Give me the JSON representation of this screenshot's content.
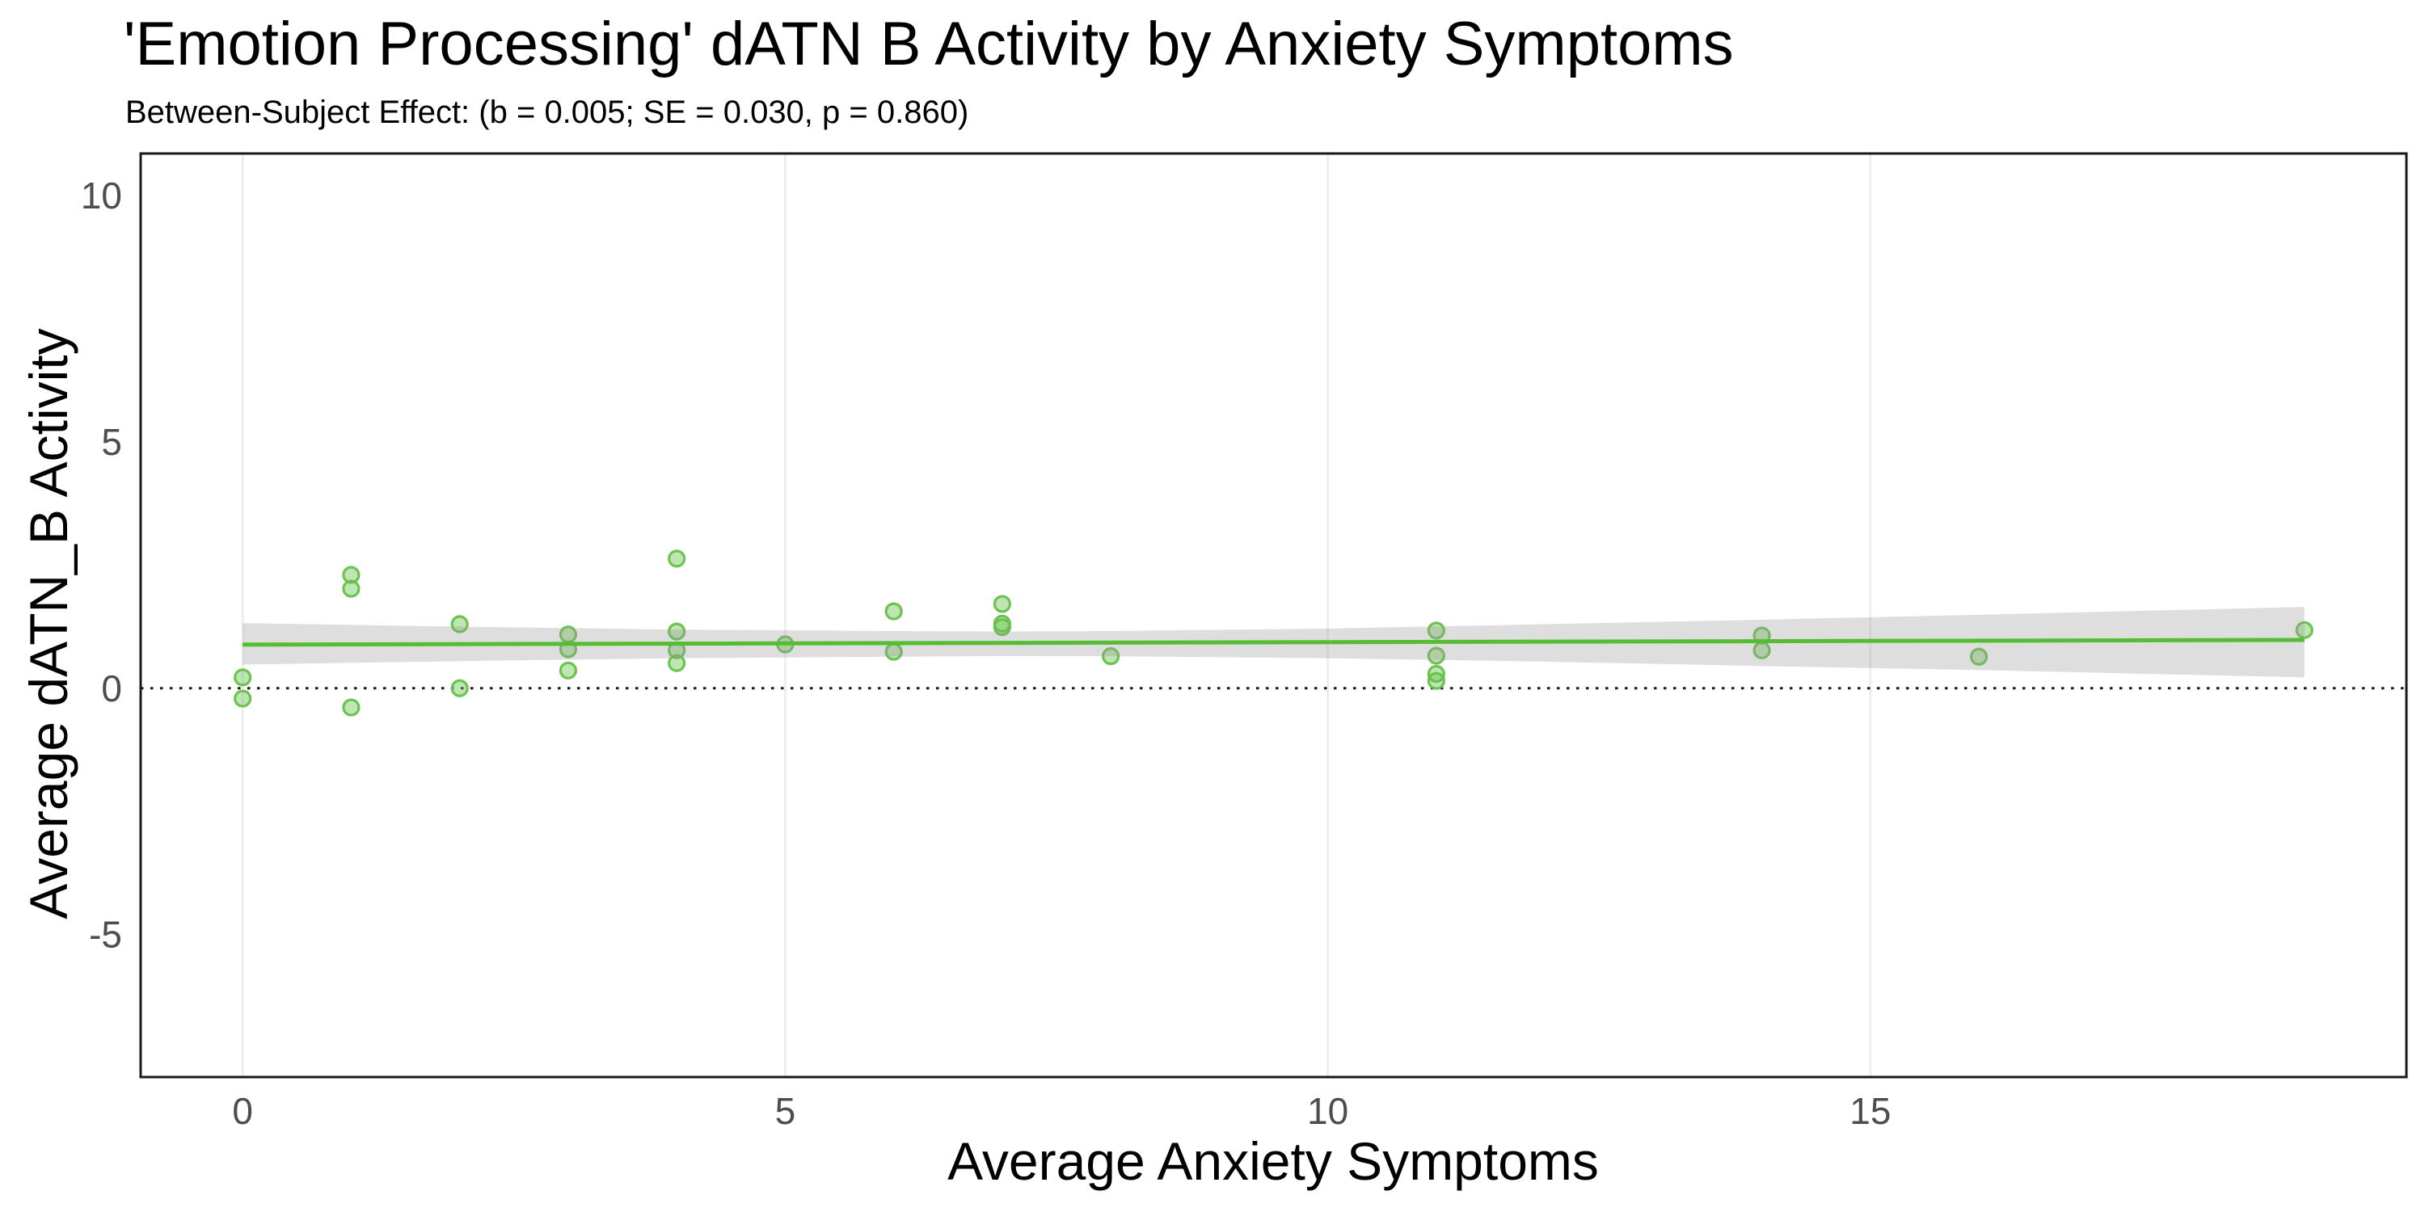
{
  "chart_data": {
    "type": "scatter",
    "title": "'Emotion Processing' dATN B Activity by Anxiety Symptoms",
    "subtitle": "Between-Subject Effect: (b = 0.005; SE = 0.030, p = 0.860)",
    "xlabel": "Average Anxiety Symptoms",
    "ylabel": "Average dATN_B Activity",
    "xlim": [
      -0.94,
      19.94
    ],
    "ylim": [
      -7.89,
      10.85
    ],
    "x_ticks": [
      0,
      5,
      10,
      15
    ],
    "y_ticks": [
      -5,
      0,
      5,
      10
    ],
    "grid": "vertical-major-only",
    "legend": "none",
    "zero_reference_line": 0,
    "points": [
      [
        0,
        0.22
      ],
      [
        0,
        -0.21
      ],
      [
        1,
        2.3
      ],
      [
        1,
        2.02
      ],
      [
        1,
        -0.39
      ],
      [
        2,
        1.3
      ],
      [
        2,
        0.0
      ],
      [
        3,
        1.09
      ],
      [
        3,
        0.79
      ],
      [
        3,
        0.36
      ],
      [
        4,
        2.63
      ],
      [
        4,
        1.15
      ],
      [
        4,
        0.77
      ],
      [
        4,
        0.51
      ],
      [
        5,
        0.89
      ],
      [
        6,
        1.56
      ],
      [
        6,
        0.74
      ],
      [
        7,
        1.71
      ],
      [
        7,
        1.31
      ],
      [
        7,
        1.24
      ],
      [
        8,
        0.65
      ],
      [
        11,
        1.17
      ],
      [
        11,
        0.66
      ],
      [
        11,
        0.29
      ],
      [
        11,
        0.15
      ],
      [
        14,
        1.07
      ],
      [
        14,
        0.77
      ],
      [
        16,
        0.64
      ],
      [
        19,
        1.18
      ]
    ],
    "regression_line": {
      "x": [
        0,
        19
      ],
      "y": [
        0.885,
        0.98
      ],
      "b": 0.005,
      "se": 0.03,
      "p": 0.86
    },
    "ci_band": {
      "x": [
        0,
        2,
        4,
        6,
        7,
        8,
        10,
        12,
        14,
        16,
        19
      ],
      "upper": [
        1.32,
        1.25,
        1.19,
        1.16,
        1.15,
        1.16,
        1.21,
        1.3,
        1.39,
        1.49,
        1.65
      ],
      "lower": [
        0.48,
        0.55,
        0.61,
        0.64,
        0.655,
        0.65,
        0.61,
        0.54,
        0.45,
        0.37,
        0.22
      ]
    },
    "colors": {
      "regression_line": "#55bd33",
      "point": "#67c04a",
      "point_fill_opacity": 0.42,
      "point_stroke_opacity": 0.95,
      "band": "#999999",
      "band_opacity": 0.32,
      "gridline": "#ececec",
      "zero_line": "#1a1a1a",
      "panel_border": "#1a1a1a",
      "tick_label": "#4d4d4d",
      "text": "#000000"
    }
  }
}
